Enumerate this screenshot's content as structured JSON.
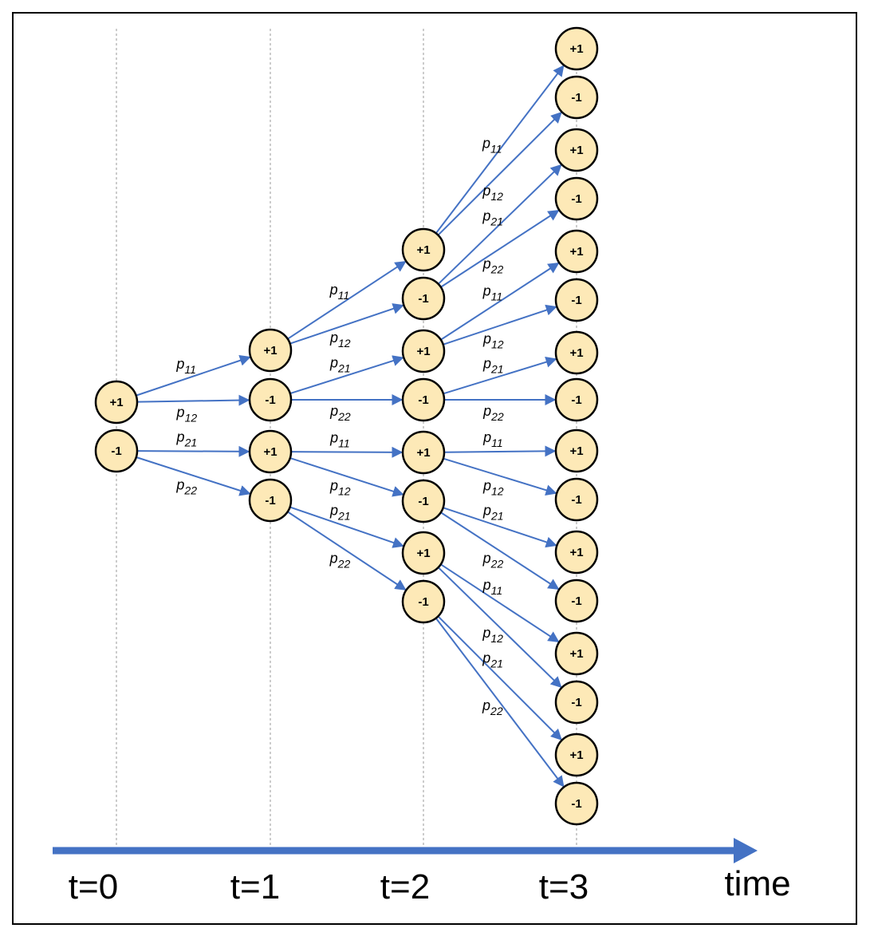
{
  "diagram": {
    "time_axis": {
      "label": "time",
      "ticks": [
        "t=0",
        "t=1",
        "t=2",
        "t=3"
      ],
      "color": "#4472c4"
    },
    "node_fill": "#fde9b7",
    "edge_color": "#4472c4",
    "levels": [
      [
        "+1",
        "-1"
      ],
      [
        "+1",
        "-1",
        "+1",
        "-1"
      ],
      [
        "+1",
        "-1",
        "+1",
        "-1",
        "+1",
        "-1",
        "+1",
        "-1"
      ],
      [
        "+1",
        "-1",
        "+1",
        "-1",
        "+1",
        "-1",
        "+1",
        "-1",
        "+1",
        "-1",
        "+1",
        "-1",
        "+1",
        "-1",
        "+1",
        "-1"
      ]
    ],
    "transition_labels": [
      {
        "p": "p",
        "sub": "11"
      },
      {
        "p": "p",
        "sub": "12"
      },
      {
        "p": "p",
        "sub": "21"
      },
      {
        "p": "p",
        "sub": "22"
      },
      {
        "p": "p",
        "sub": "11"
      },
      {
        "p": "p",
        "sub": "12"
      },
      {
        "p": "p",
        "sub": "21"
      },
      {
        "p": "p",
        "sub": "22"
      },
      {
        "p": "p",
        "sub": "11"
      },
      {
        "p": "p",
        "sub": "12"
      },
      {
        "p": "p",
        "sub": "21"
      },
      {
        "p": "p",
        "sub": "22"
      },
      {
        "p": "p",
        "sub": "11"
      },
      {
        "p": "p",
        "sub": "12"
      },
      {
        "p": "p",
        "sub": "21"
      },
      {
        "p": "p",
        "sub": "22"
      },
      {
        "p": "p",
        "sub": "11"
      },
      {
        "p": "p",
        "sub": "12"
      },
      {
        "p": "p",
        "sub": "21"
      },
      {
        "p": "p",
        "sub": "22"
      },
      {
        "p": "p",
        "sub": "11"
      },
      {
        "p": "p",
        "sub": "12"
      },
      {
        "p": "p",
        "sub": "21"
      },
      {
        "p": "p",
        "sub": "22"
      },
      {
        "p": "p",
        "sub": "11"
      },
      {
        "p": "p",
        "sub": "12"
      },
      {
        "p": "p",
        "sub": "21"
      },
      {
        "p": "p",
        "sub": "22"
      }
    ]
  }
}
